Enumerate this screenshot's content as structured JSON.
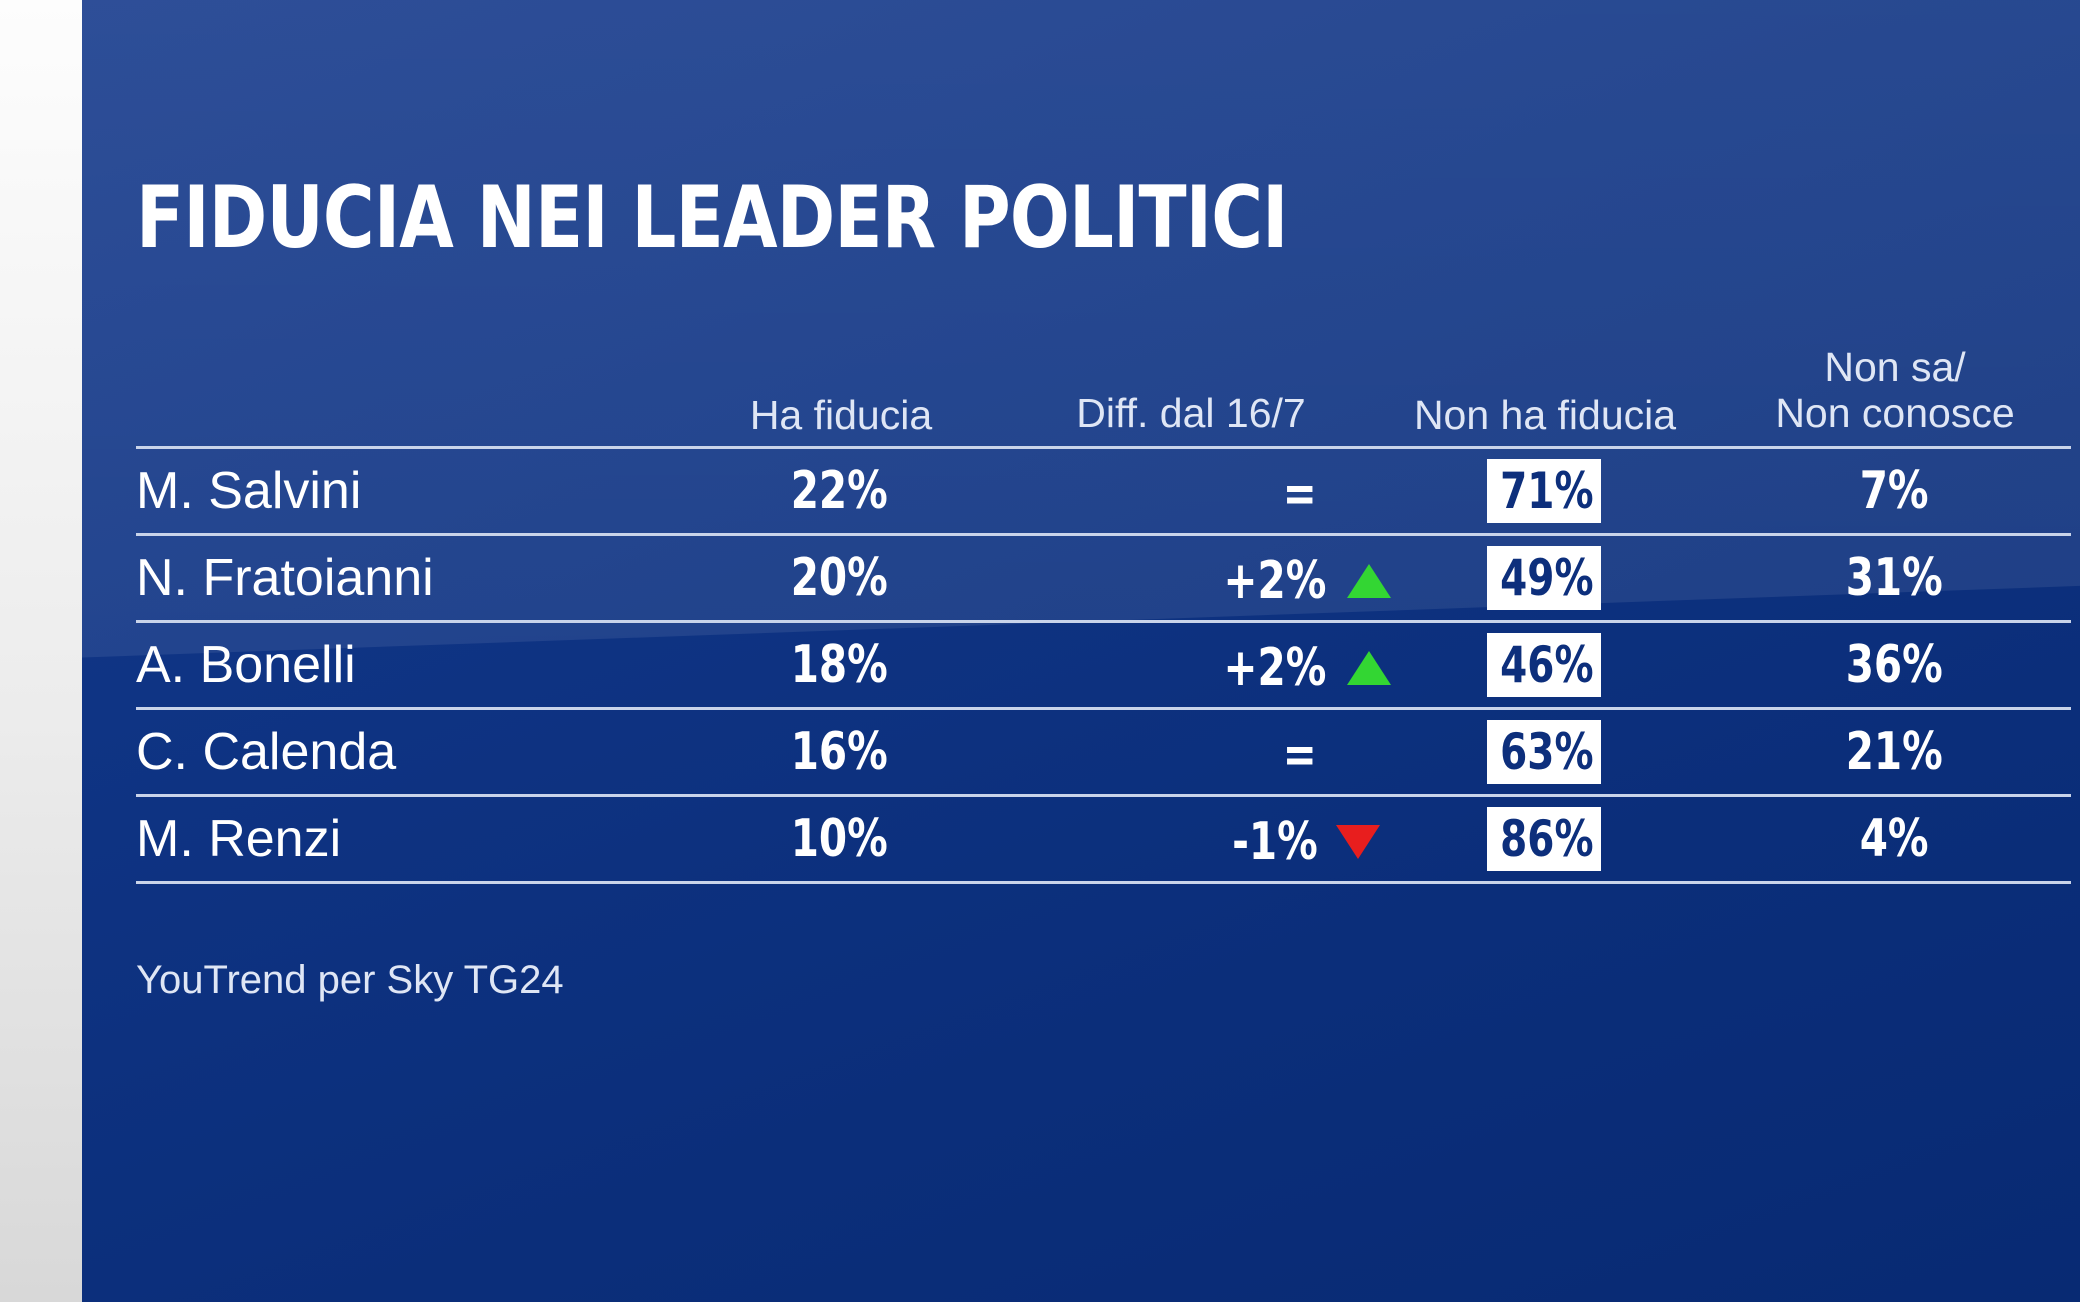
{
  "title": "FIDUCIA NEI LEADER POLITICI",
  "source": "YouTrend per Sky TG24",
  "colors": {
    "background": "#0b2e7a",
    "up": "#33d633",
    "down": "#e81e1e",
    "box_fill": "#ffffff",
    "box_text": "#0d2f7c"
  },
  "chart_data": {
    "type": "table",
    "title": "FIDUCIA NEI LEADER POLITICI",
    "columns": [
      "Ha fiducia",
      "Diff. dal 16/7",
      "Non ha fiducia",
      "Non sa/\nNon conosce"
    ],
    "rows": [
      {
        "leader": "M. Salvini",
        "ha_fiducia": "22%",
        "diff": "=",
        "trend": "none",
        "non_ha_fiducia": "71%",
        "non_sa": "7%"
      },
      {
        "leader": "N. Fratoianni",
        "ha_fiducia": "20%",
        "diff": "+2%",
        "trend": "up",
        "non_ha_fiducia": "49%",
        "non_sa": "31%"
      },
      {
        "leader": "A. Bonelli",
        "ha_fiducia": "18%",
        "diff": "+2%",
        "trend": "up",
        "non_ha_fiducia": "46%",
        "non_sa": "36%"
      },
      {
        "leader": "C. Calenda",
        "ha_fiducia": "16%",
        "diff": "=",
        "trend": "none",
        "non_ha_fiducia": "63%",
        "non_sa": "21%"
      },
      {
        "leader": "M. Renzi",
        "ha_fiducia": "10%",
        "diff": "-1%",
        "trend": "down",
        "non_ha_fiducia": "86%",
        "non_sa": "4%"
      }
    ]
  }
}
